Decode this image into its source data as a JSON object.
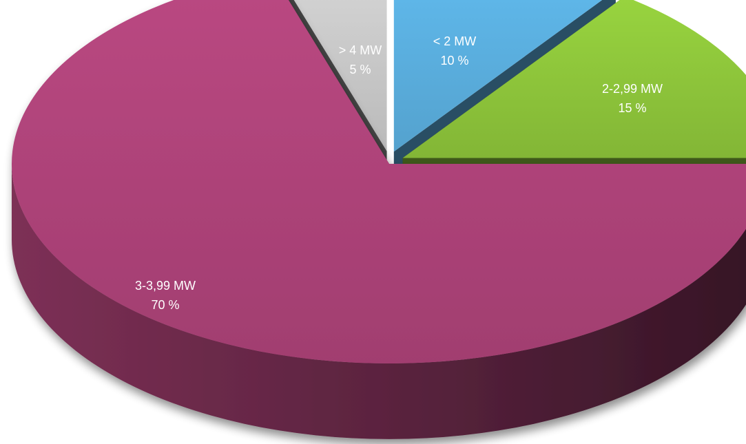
{
  "chart_data": {
    "type": "pie",
    "title": "",
    "style": "3d-exploded",
    "start_angle_deg": 0,
    "direction": "clockwise",
    "slices": [
      {
        "label": "< 2 MW",
        "value": 10,
        "value_label": "10 %",
        "color": "#5aaede",
        "exploded": true
      },
      {
        "label": "2-2,99 MW",
        "value": 15,
        "value_label": "15 %",
        "color": "#8dc43a",
        "exploded": true
      },
      {
        "label": "3-3,99 MW",
        "value": 70,
        "value_label": "70 %",
        "color": "#ad4378",
        "exploded": false
      },
      {
        "label": "> 4 MW",
        "value": 5,
        "value_label": "5 %",
        "color": "#c8c8c8",
        "exploded": true
      }
    ],
    "legend": "none"
  }
}
